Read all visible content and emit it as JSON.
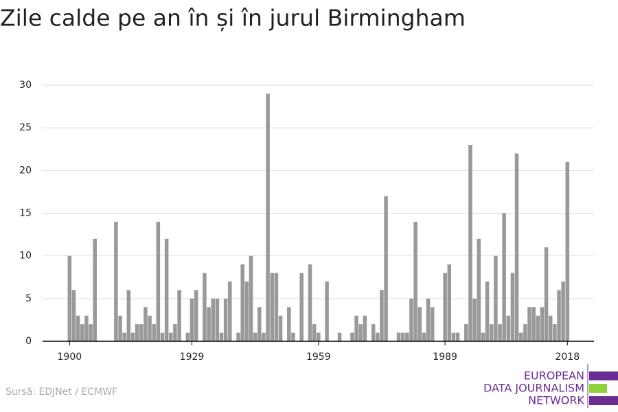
{
  "chart_data": {
    "type": "bar",
    "title": "Zile calde pe an în și în jurul Birmingham",
    "source": "Sursă: EDJNet / ECMWF",
    "logo": [
      "EUROPEAN",
      "DATA JOURNALISM",
      "NETWORK"
    ],
    "color": "#999999",
    "grid": true,
    "x": [
      1900,
      1901,
      1902,
      1903,
      1904,
      1905,
      1906,
      1907,
      1908,
      1909,
      1910,
      1911,
      1912,
      1913,
      1914,
      1915,
      1916,
      1917,
      1918,
      1919,
      1920,
      1921,
      1922,
      1923,
      1924,
      1925,
      1926,
      1927,
      1928,
      1929,
      1930,
      1931,
      1932,
      1933,
      1934,
      1935,
      1936,
      1937,
      1938,
      1939,
      1940,
      1941,
      1942,
      1943,
      1944,
      1945,
      1946,
      1947,
      1948,
      1949,
      1950,
      1951,
      1952,
      1953,
      1954,
      1955,
      1956,
      1957,
      1958,
      1959,
      1960,
      1961,
      1962,
      1963,
      1964,
      1965,
      1966,
      1967,
      1968,
      1969,
      1970,
      1971,
      1972,
      1973,
      1974,
      1975,
      1976,
      1977,
      1978,
      1979,
      1980,
      1981,
      1982,
      1983,
      1984,
      1985,
      1986,
      1987,
      1988,
      1989,
      1990,
      1991,
      1992,
      1993,
      1994,
      1995,
      1996,
      1997,
      1998,
      1999,
      2000,
      2001,
      2002,
      2003,
      2004,
      2005,
      2006,
      2007,
      2008,
      2009,
      2010,
      2011,
      2012,
      2013,
      2014,
      2015,
      2016,
      2017,
      2018
    ],
    "values": [
      10,
      6,
      3,
      2,
      3,
      2,
      12,
      0,
      0,
      0,
      0,
      14,
      3,
      1,
      6,
      1,
      2,
      2,
      4,
      3,
      2,
      14,
      1,
      12,
      1,
      2,
      6,
      0,
      1,
      5,
      6,
      0,
      8,
      4,
      5,
      5,
      1,
      5,
      7,
      0,
      1,
      9,
      7,
      10,
      1,
      4,
      1,
      29,
      8,
      8,
      3,
      0,
      4,
      1,
      0,
      8,
      0,
      9,
      2,
      1,
      0,
      7,
      0,
      0,
      1,
      0,
      0,
      1,
      3,
      2,
      3,
      0,
      2,
      1,
      6,
      17,
      0,
      0,
      1,
      1,
      1,
      5,
      14,
      4,
      1,
      5,
      4,
      0,
      0,
      8,
      9,
      1,
      1,
      0,
      2,
      23,
      5,
      12,
      1,
      7,
      2,
      10,
      2,
      15,
      3,
      8,
      22,
      1,
      2,
      4,
      4,
      3,
      4,
      11,
      3,
      2,
      6,
      7,
      21
    ],
    "xlim": [
      1893.6,
      2024.3
    ],
    "xticks": [
      1900,
      1929,
      1959,
      1989,
      2018
    ],
    "ylim": [
      0,
      30
    ],
    "yticks": [
      0,
      5,
      10,
      15,
      20,
      25,
      30
    ]
  }
}
